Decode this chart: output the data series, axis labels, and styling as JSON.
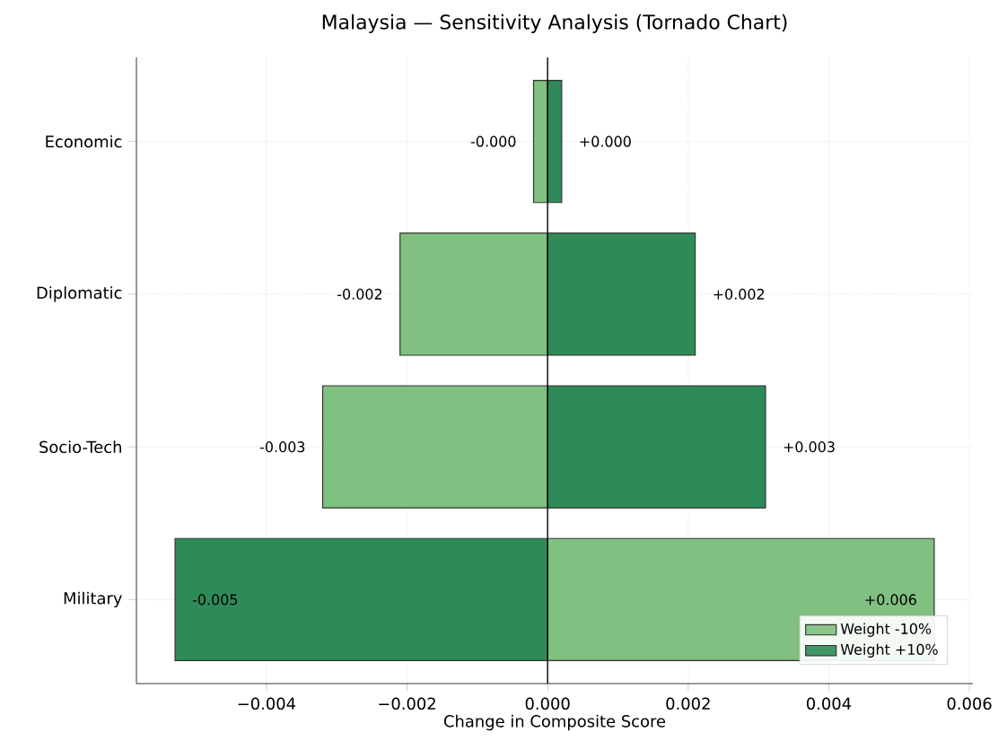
{
  "chart_data": {
    "type": "bar",
    "orientation": "horizontal",
    "title": "Malaysia — Sensitivity Analysis (Tornado Chart)",
    "xlabel": "Change in Composite Score",
    "categories": [
      "Economic",
      "Diplomatic",
      "Socio-Tech",
      "Military"
    ],
    "series": [
      {
        "name": "Weight -10%",
        "color": "#80c080",
        "values": [
          -0.0002,
          -0.0021,
          -0.0032,
          0.0055
        ],
        "value_labels": [
          "-0.000",
          "-0.002",
          "-0.003",
          "+0.006"
        ]
      },
      {
        "name": "Weight +10%",
        "color": "#2e8b57",
        "values": [
          0.0002,
          0.0021,
          0.0031,
          -0.0053
        ],
        "value_labels": [
          "+0.000",
          "+0.002",
          "+0.003",
          "-0.005"
        ]
      }
    ],
    "xlim": [
      -0.00585,
      0.00605
    ],
    "xticks": [
      {
        "value": -0.004,
        "label": "−0.004"
      },
      {
        "value": -0.002,
        "label": "−0.002"
      },
      {
        "value": 0,
        "label": "0.000"
      },
      {
        "value": 0.002,
        "label": "0.002"
      },
      {
        "value": 0.004,
        "label": "0.004"
      },
      {
        "value": 0.006,
        "label": "0.006"
      }
    ],
    "ref_lines": [
      {
        "axis": "x",
        "value": 0,
        "color": "#000000"
      }
    ],
    "stacked": true,
    "grid": true,
    "legend": "bottom right"
  }
}
